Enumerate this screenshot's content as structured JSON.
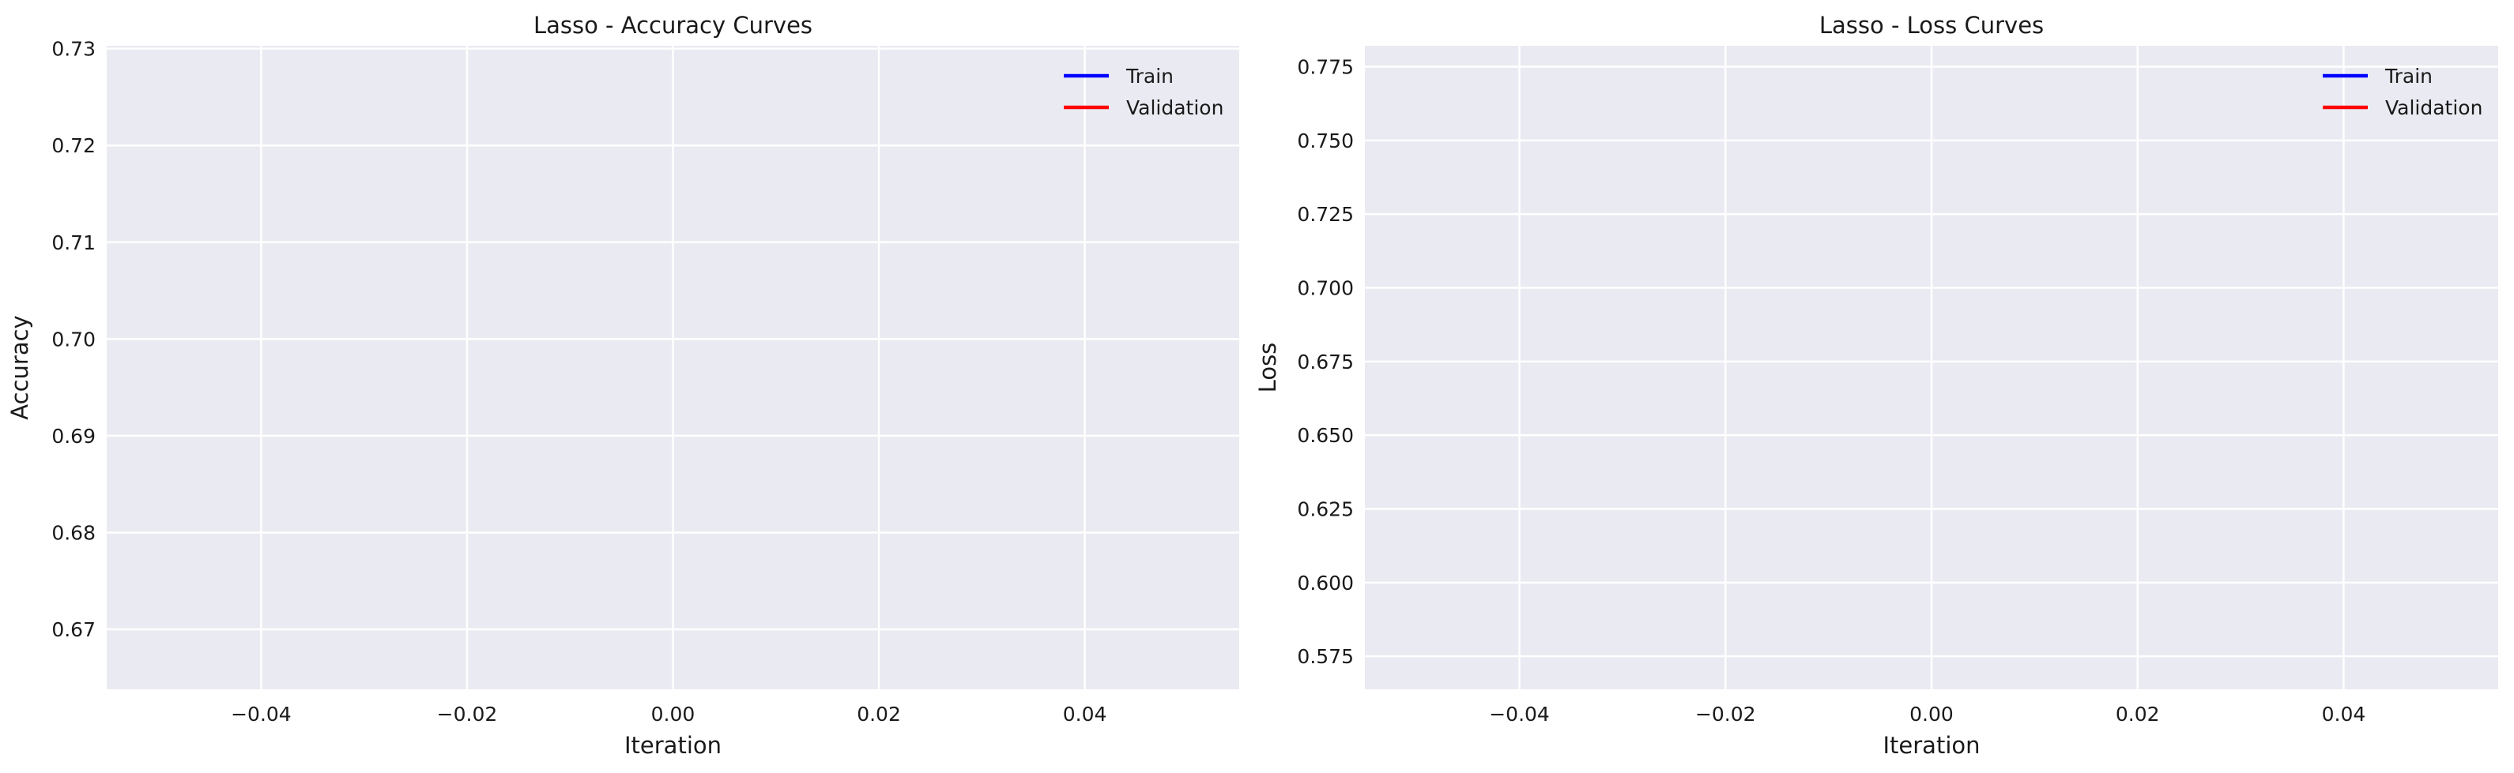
{
  "colors": {
    "plot_bg": "#EAEAF2",
    "grid": "#FFFFFF",
    "train": "#0000FF",
    "validation": "#FF0000"
  },
  "chart_data": [
    {
      "type": "line",
      "title": "Lasso - Accuracy Curves",
      "xlabel": "Iteration",
      "ylabel": "Accuracy",
      "xlim": [
        -0.055,
        0.055
      ],
      "ylim": [
        0.6638,
        0.7303
      ],
      "xticks": [
        -0.04,
        -0.02,
        0.0,
        0.02,
        0.04
      ],
      "xtick_labels": [
        "−0.04",
        "−0.02",
        "0.00",
        "0.02",
        "0.04"
      ],
      "yticks": [
        0.67,
        0.68,
        0.69,
        0.7,
        0.71,
        0.72,
        0.73
      ],
      "ytick_labels": [
        "0.67",
        "0.68",
        "0.69",
        "0.70",
        "0.71",
        "0.72",
        "0.73"
      ],
      "grid": true,
      "legend_position": "top-right",
      "series": [
        {
          "name": "Train",
          "x": [],
          "y": []
        },
        {
          "name": "Validation",
          "x": [],
          "y": []
        }
      ]
    },
    {
      "type": "line",
      "title": "Lasso - Loss Curves",
      "xlabel": "Iteration",
      "ylabel": "Loss",
      "xlim": [
        -0.055,
        0.055
      ],
      "ylim": [
        0.5638,
        0.7821
      ],
      "xticks": [
        -0.04,
        -0.02,
        0.0,
        0.02,
        0.04
      ],
      "xtick_labels": [
        "−0.04",
        "−0.02",
        "0.00",
        "0.02",
        "0.04"
      ],
      "yticks": [
        0.575,
        0.6,
        0.625,
        0.65,
        0.675,
        0.7,
        0.725,
        0.75,
        0.775
      ],
      "ytick_labels": [
        "0.575",
        "0.600",
        "0.625",
        "0.650",
        "0.675",
        "0.700",
        "0.725",
        "0.750",
        "0.775"
      ],
      "grid": true,
      "legend_position": "top-right",
      "series": [
        {
          "name": "Train",
          "x": [],
          "y": []
        },
        {
          "name": "Validation",
          "x": [],
          "y": []
        }
      ]
    }
  ]
}
